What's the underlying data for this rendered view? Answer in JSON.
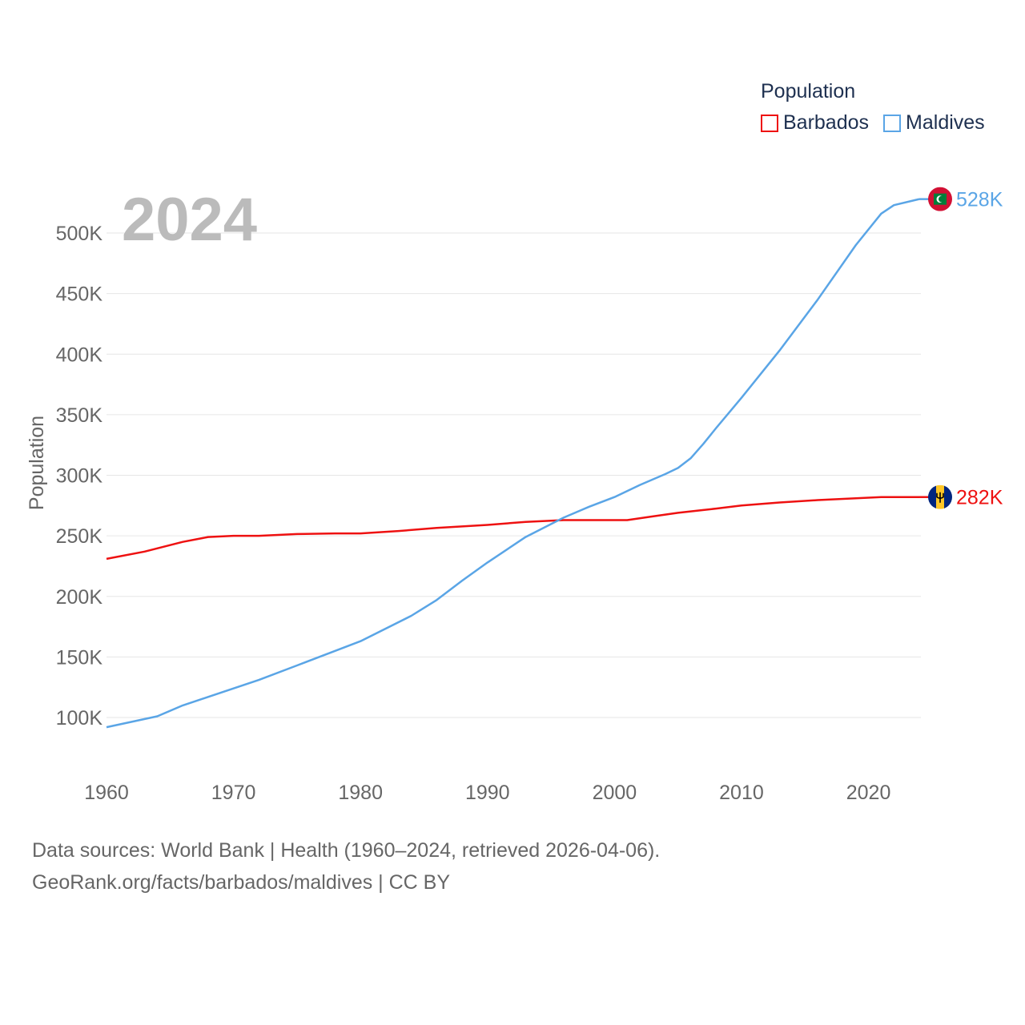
{
  "legend": {
    "title": "Population",
    "items": [
      {
        "label": "Barbados",
        "color": "#ee1111"
      },
      {
        "label": "Maldives",
        "color": "#5aa5e6"
      }
    ]
  },
  "footer": {
    "line1": "Data sources: World Bank | Health (1960–2024, retrieved 2026-04-06).",
    "line2": "GeoRank.org/facts/barbados/maldives | CC BY"
  },
  "chart_data": {
    "type": "line",
    "title": "",
    "current_year": "2024",
    "ylabel": "Population",
    "xlabel": "",
    "xlim": [
      1960,
      2024
    ],
    "ylim": [
      70000,
      530000
    ],
    "x_ticks": [
      1960,
      1970,
      1980,
      1990,
      2000,
      2010,
      2020
    ],
    "y_ticks": [
      {
        "value": 100000,
        "label": "100K"
      },
      {
        "value": 150000,
        "label": "150K"
      },
      {
        "value": 200000,
        "label": "200K"
      },
      {
        "value": 250000,
        "label": "250K"
      },
      {
        "value": 300000,
        "label": "300K"
      },
      {
        "value": 350000,
        "label": "350K"
      },
      {
        "value": 400000,
        "label": "400K"
      },
      {
        "value": 450000,
        "label": "450K"
      },
      {
        "value": 500000,
        "label": "500K"
      }
    ],
    "grid": true,
    "legend_position": "top-right",
    "series": [
      {
        "name": "Barbados",
        "color": "#ee1111",
        "end_label": "282K",
        "flag_icon": "barbados-flag-icon",
        "x": [
          1960,
          1963,
          1966,
          1968,
          1970,
          1972,
          1975,
          1978,
          1980,
          1983,
          1986,
          1990,
          1993,
          1996,
          1998,
          2000,
          2001,
          2003,
          2005,
          2008,
          2010,
          2013,
          2016,
          2019,
          2021,
          2024
        ],
        "values": [
          231000,
          237000,
          245000,
          249000,
          250000,
          250000,
          251500,
          252000,
          252000,
          254000,
          256500,
          259000,
          261500,
          263000,
          263000,
          263000,
          263000,
          266000,
          269000,
          272500,
          275000,
          277500,
          279500,
          281000,
          282000,
          282000
        ]
      },
      {
        "name": "Maldives",
        "color": "#5aa5e6",
        "end_label": "528K",
        "flag_icon": "maldives-flag-icon",
        "x": [
          1960,
          1964,
          1966,
          1968,
          1970,
          1972,
          1975,
          1978,
          1980,
          1984,
          1986,
          1988,
          1990,
          1993,
          1996,
          1998,
          2000,
          2002,
          2004,
          2005,
          2006,
          2007,
          2008,
          2010,
          2013,
          2016,
          2019,
          2021,
          2022,
          2024
        ],
        "values": [
          92000,
          101000,
          110000,
          117000,
          124000,
          131000,
          143000,
          155000,
          163000,
          184000,
          197000,
          213000,
          228000,
          249000,
          265000,
          274000,
          282000,
          292000,
          301000,
          306000,
          314000,
          326000,
          339000,
          364000,
          403000,
          445000,
          490000,
          516000,
          523000,
          528000
        ]
      }
    ]
  }
}
